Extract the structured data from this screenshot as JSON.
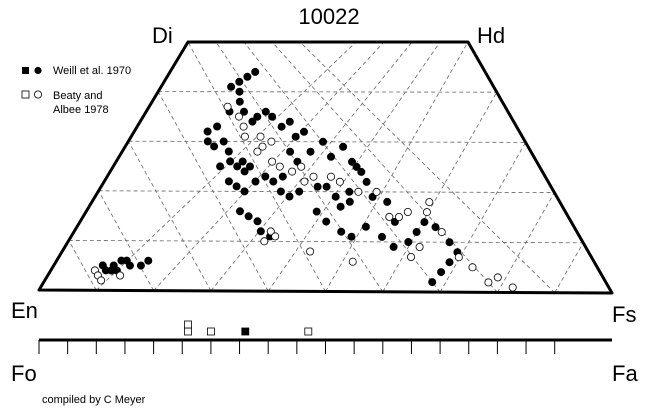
{
  "chart_data": {
    "type": "scatter",
    "title": "10022",
    "diagram": "pyroxene quadrilateral",
    "corners": {
      "top_left": "Di",
      "top_right": "Hd",
      "bottom_left": "En",
      "bottom_right": "Fs"
    },
    "olivine_axis": {
      "left": "Fo",
      "right": "Fa"
    },
    "legend": [
      {
        "label": "Weill et al. 1970",
        "markers": [
          "filled-square",
          "filled-circle"
        ]
      },
      {
        "label_lines": [
          "Beaty and",
          "Albee 1978"
        ],
        "markers": [
          "open-square",
          "open-circle"
        ]
      }
    ],
    "credit": "compiled by C Meyer",
    "pyroxene_series": [
      {
        "source": "Weill et al. 1970",
        "marker": "filled-circle",
        "points": [
          [
            21,
            41
          ],
          [
            23,
            42
          ],
          [
            24,
            40
          ],
          [
            25,
            43
          ],
          [
            27,
            44
          ],
          [
            25,
            38
          ],
          [
            27,
            36
          ],
          [
            23,
            36
          ],
          [
            21,
            33
          ],
          [
            19,
            32
          ],
          [
            20,
            30
          ],
          [
            22,
            29
          ],
          [
            24,
            30
          ],
          [
            26,
            28
          ],
          [
            25,
            25
          ],
          [
            27,
            26
          ],
          [
            29,
            25
          ],
          [
            30,
            26
          ],
          [
            31,
            24
          ],
          [
            32,
            25
          ],
          [
            28,
            22
          ],
          [
            30,
            21
          ],
          [
            32,
            20
          ],
          [
            34,
            22
          ],
          [
            36,
            23
          ],
          [
            38,
            22
          ],
          [
            40,
            23
          ],
          [
            40,
            20
          ],
          [
            42,
            19
          ],
          [
            44,
            20
          ],
          [
            48,
            21
          ],
          [
            50,
            21
          ],
          [
            52,
            19
          ],
          [
            53,
            17
          ],
          [
            55,
            20
          ],
          [
            55,
            18
          ],
          [
            57,
            25
          ],
          [
            59,
            22
          ],
          [
            60,
            19
          ],
          [
            63,
            18
          ],
          [
            64,
            14
          ],
          [
            66,
            10
          ],
          [
            68,
            12
          ],
          [
            70,
            14
          ],
          [
            72,
            13
          ],
          [
            74,
            10
          ],
          [
            75,
            8
          ],
          [
            73,
            6
          ],
          [
            71,
            4
          ],
          [
            69,
            2
          ],
          [
            30,
            34
          ],
          [
            31,
            35
          ],
          [
            33,
            36
          ],
          [
            35,
            35
          ],
          [
            38,
            33
          ],
          [
            40,
            34
          ],
          [
            42,
            31
          ],
          [
            44,
            32
          ],
          [
            46,
            28
          ],
          [
            49,
            30
          ],
          [
            51,
            27
          ],
          [
            54,
            29
          ],
          [
            56,
            26
          ],
          [
            58,
            24
          ],
          [
            41,
            28
          ],
          [
            43,
            26
          ],
          [
            48,
            16
          ],
          [
            50,
            14
          ],
          [
            53,
            12
          ],
          [
            55,
            11
          ],
          [
            58,
            13
          ],
          [
            61,
            11
          ],
          [
            63,
            9
          ],
          [
            32,
            16
          ],
          [
            34,
            15
          ],
          [
            36,
            14
          ],
          [
            37,
            12
          ],
          [
            39,
            11
          ],
          [
            9,
            5
          ],
          [
            10,
            4
          ],
          [
            11,
            5
          ],
          [
            12,
            4
          ],
          [
            13,
            6
          ],
          [
            14,
            5
          ],
          [
            16,
            5
          ],
          [
            17,
            6
          ],
          [
            12,
            6
          ],
          [
            11,
            4
          ]
        ]
      },
      {
        "source": "Beaty and Albee 1978",
        "marker": "open-circle",
        "points": [
          [
            22,
            37
          ],
          [
            26,
            35
          ],
          [
            28,
            33
          ],
          [
            29,
            31
          ],
          [
            33,
            28
          ],
          [
            36,
            30
          ],
          [
            37,
            26
          ],
          [
            39,
            25
          ],
          [
            42,
            24
          ],
          [
            44,
            25
          ],
          [
            45,
            22
          ],
          [
            47,
            23
          ],
          [
            51,
            23
          ],
          [
            53,
            22
          ],
          [
            57,
            20
          ],
          [
            61,
            20
          ],
          [
            63,
            15
          ],
          [
            65,
            15
          ],
          [
            67,
            16
          ],
          [
            71,
            16
          ],
          [
            72,
            18
          ],
          [
            73,
            12
          ],
          [
            75,
            7
          ],
          [
            77,
            5
          ],
          [
            79,
            2
          ],
          [
            81,
            3
          ],
          [
            83,
            1
          ],
          [
            33,
            31
          ],
          [
            34,
            29
          ],
          [
            38,
            10
          ],
          [
            39,
            12
          ],
          [
            40,
            11
          ],
          [
            47,
            8
          ],
          [
            55,
            6
          ],
          [
            66,
            7
          ],
          [
            68,
            9
          ],
          [
            8,
            4
          ],
          [
            9,
            3
          ],
          [
            10,
            2
          ],
          [
            13,
            3
          ]
        ]
      }
    ],
    "olivine_series": [
      {
        "source": "Weill et al. 1970",
        "marker": "filled-square",
        "values": [
          36
        ]
      },
      {
        "source": "Beaty and Albee 1978",
        "marker": "open-square",
        "values": [
          26,
          26,
          30,
          47
        ]
      }
    ]
  }
}
